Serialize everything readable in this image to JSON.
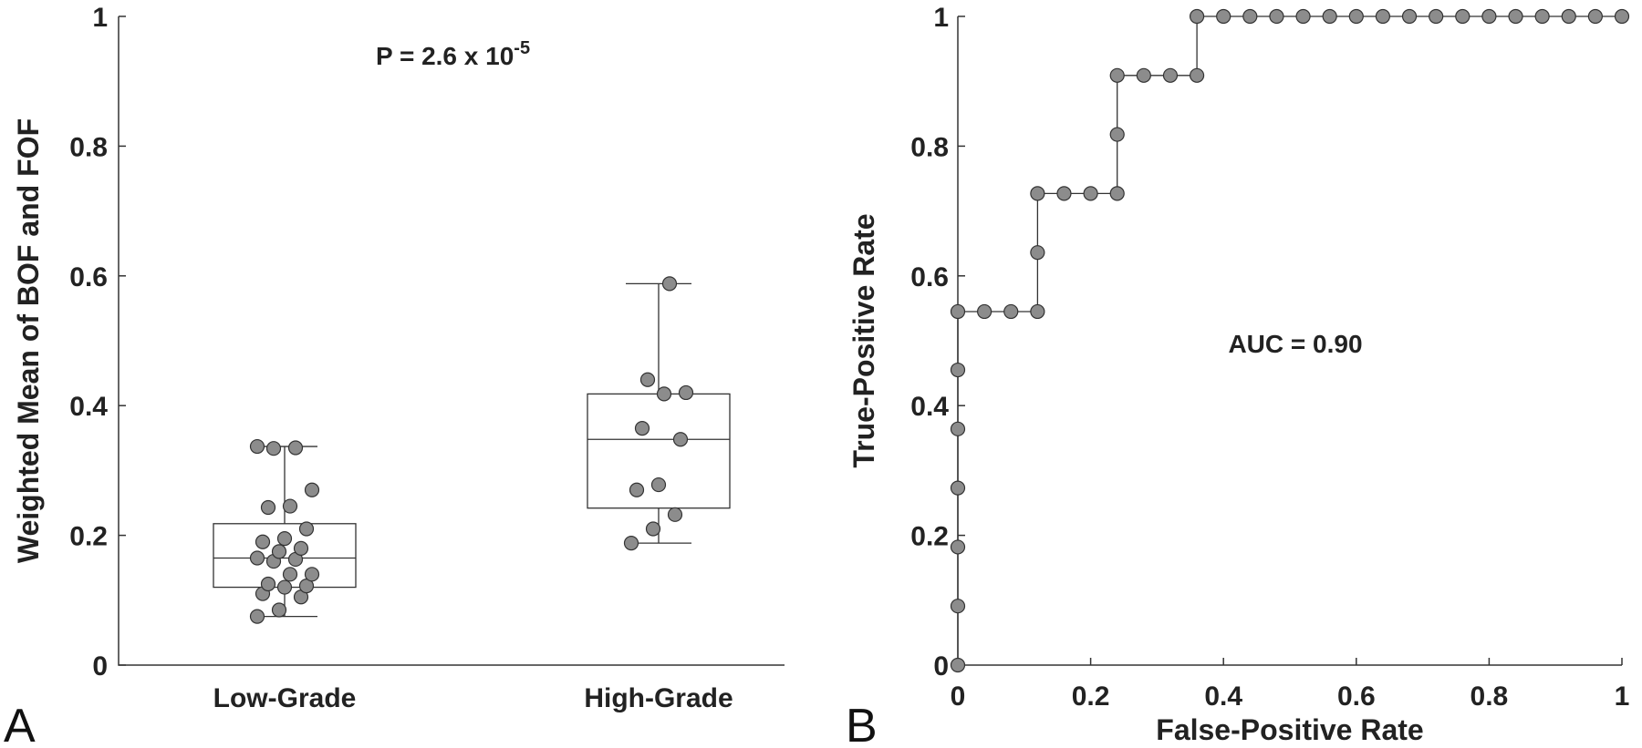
{
  "chart_data": [
    {
      "type": "box",
      "panel_label": "A",
      "ylabel": "Weighted Mean of BOF and FOF",
      "xlabel": "",
      "ylim": [
        0,
        1
      ],
      "yticks": [
        "0",
        "0.2",
        "0.4",
        "0.6",
        "0.8",
        "1"
      ],
      "categories": [
        "Low-Grade",
        "High-Grade"
      ],
      "annotation": {
        "text": "P = 2.6 x 10",
        "superscript": "-5"
      },
      "colors": {
        "marker": "#8c8c8c",
        "edge": "#333333"
      },
      "groups": [
        {
          "name": "Low-Grade",
          "whisker_low": 0.075,
          "q1": 0.12,
          "median": 0.165,
          "q3": 0.218,
          "whisker_high": 0.337,
          "points": [
            0.075,
            0.085,
            0.105,
            0.11,
            0.12,
            0.122,
            0.125,
            0.14,
            0.14,
            0.16,
            0.163,
            0.165,
            0.175,
            0.18,
            0.19,
            0.195,
            0.21,
            0.243,
            0.245,
            0.27,
            0.334,
            0.335,
            0.337
          ]
        },
        {
          "name": "High-Grade",
          "whisker_low": 0.188,
          "q1": 0.242,
          "median": 0.348,
          "q3": 0.418,
          "whisker_high": 0.588,
          "points": [
            0.188,
            0.21,
            0.232,
            0.27,
            0.278,
            0.348,
            0.365,
            0.418,
            0.42,
            0.44,
            0.588
          ]
        }
      ]
    },
    {
      "type": "line",
      "panel_label": "B",
      "xlabel": "False-Positive Rate",
      "ylabel": "True-Positive Rate",
      "xlim": [
        0,
        1
      ],
      "ylim": [
        0,
        1
      ],
      "xticks": [
        "0",
        "0.2",
        "0.4",
        "0.6",
        "0.8",
        "1"
      ],
      "yticks": [
        "0",
        "0.2",
        "0.4",
        "0.6",
        "0.8",
        "1"
      ],
      "annotation": "AUC = 0.90",
      "series": [
        {
          "x": [
            0,
            0,
            0,
            0,
            0,
            0,
            0,
            0.04,
            0.08,
            0.12,
            0.12,
            0.12,
            0.16,
            0.2,
            0.24,
            0.24,
            0.24,
            0.28,
            0.32,
            0.36,
            0.36,
            0.4,
            0.44,
            0.48,
            0.52,
            0.56,
            0.6,
            0.64,
            0.68,
            0.72,
            0.76,
            0.8,
            0.84,
            0.88,
            0.92,
            0.96,
            1.0
          ],
          "y": [
            0,
            0.091,
            0.182,
            0.273,
            0.364,
            0.455,
            0.545,
            0.545,
            0.545,
            0.545,
            0.636,
            0.727,
            0.727,
            0.727,
            0.727,
            0.818,
            0.909,
            0.909,
            0.909,
            0.909,
            1,
            1,
            1,
            1,
            1,
            1,
            1,
            1,
            1,
            1,
            1,
            1,
            1,
            1,
            1,
            1,
            1
          ]
        }
      ]
    }
  ]
}
